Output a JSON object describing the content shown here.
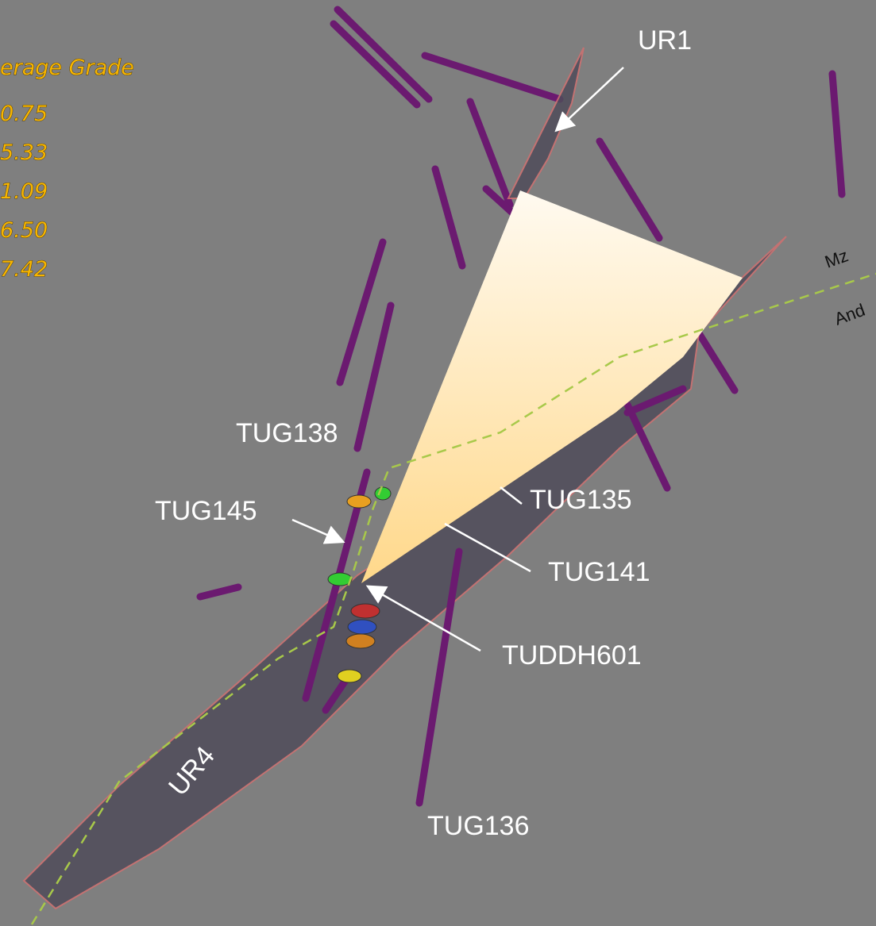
{
  "legend": {
    "title": "erage Grade",
    "values": [
      "0.75",
      "5.33",
      "1.09",
      "6.50",
      "7.42"
    ]
  },
  "labels": {
    "ur1": "UR1",
    "ur4": "UR4",
    "mz": "Mz",
    "and": "And",
    "tug138": "TUG138",
    "tug145": "TUG145",
    "tug135": "TUG135",
    "tug141": "TUG141",
    "tuddh601": "TUDDH601",
    "tug136": "TUG136"
  }
}
